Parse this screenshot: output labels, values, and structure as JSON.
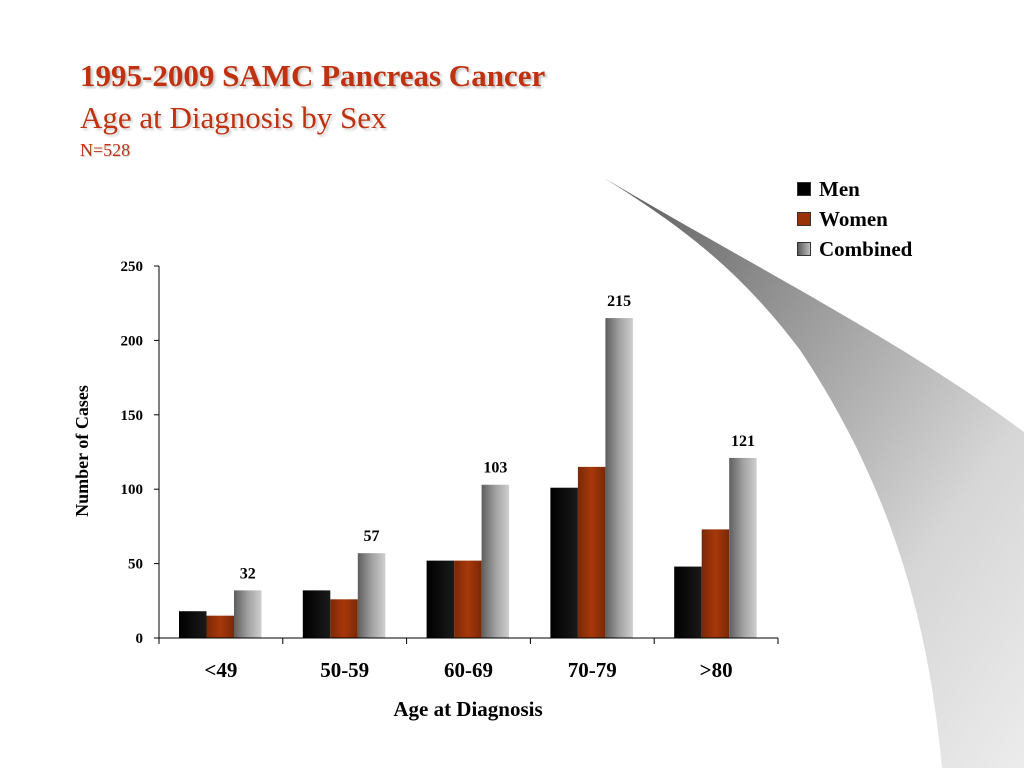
{
  "slide": {
    "title_line1": "1995-2009 SAMC Pancreas Cancer",
    "title_line2": "Age at Diagnosis by Sex",
    "title_line3": "N=528"
  },
  "legend": {
    "items": [
      {
        "label": "Men",
        "color": "#000000"
      },
      {
        "label": "Women",
        "color": "#9a3208"
      },
      {
        "label": "Combined",
        "color": "#8a8a8a"
      }
    ]
  },
  "chart_data": {
    "type": "bar",
    "title": "1995-2009 SAMC Pancreas Cancer",
    "subtitle": "Age at Diagnosis by Sex",
    "categories": [
      "<49",
      "50-59",
      "60-69",
      "70-79",
      ">80"
    ],
    "series": [
      {
        "name": "Men",
        "color": "#000000",
        "values": [
          18,
          32,
          52,
          101,
          48
        ]
      },
      {
        "name": "Women",
        "color": "#9a3208",
        "values": [
          15,
          26,
          52,
          115,
          73
        ]
      },
      {
        "name": "Combined",
        "color": "#8a8a8a",
        "values": [
          32,
          57,
          103,
          215,
          121
        ]
      }
    ],
    "data_labels": {
      "series": "Combined",
      "values": [
        "32",
        "57",
        "103",
        "215",
        "121"
      ]
    },
    "xlabel": "Age at Diagnosis",
    "ylabel": "Number of Cases",
    "ylim": [
      0,
      250
    ],
    "yticks": [
      0,
      50,
      100,
      150,
      200,
      250
    ],
    "ytick_labels": [
      "0",
      "50",
      "100",
      "150",
      "200",
      "250"
    ],
    "grid": false,
    "legend_position": "top-right"
  }
}
